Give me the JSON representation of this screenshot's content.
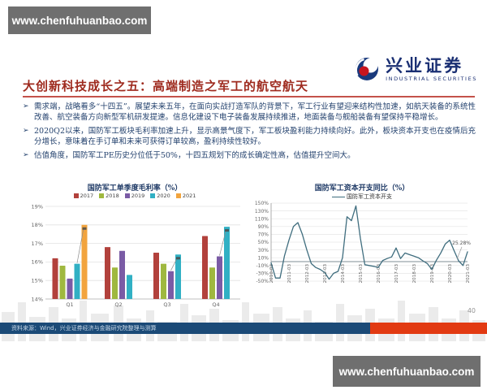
{
  "watermarks": {
    "top": "www.chenfuhuanbao.com",
    "bottom": "www.chenfuhuanbao.com"
  },
  "logo": {
    "name": "兴业证券",
    "subtitle": "INDUSTRIAL SECURITIES"
  },
  "slide": {
    "title": "大创新科技成长之五：高端制造之军工的航空航天",
    "bullet_marker": "➢",
    "bullets": [
      "需求端，战略看多“十四五”。展望未来五年，在面向实战打造军队的背景下，军工行业有望迎来结构性加速，如航天装备的系统性改善、航空装备方向新型军机研发提速。信息化建设下电子装备发展持续推进，地面装备与舰船装备有望保持平稳增长。",
      "2020Q2以来，国防军工板块毛利率加速上升，显示高景气度下，军工板块盈利能力持续向好。此外，板块资本开支也在疫情后充分增长，意味着在手订单和未来可获得订单较高，盈利持续性较好。",
      "估值角度，国防军工PE历史分位低于50%，十四五规划下的成长确定性高，估值提升空间大。"
    ],
    "source": "资料来源：Wind，兴业证券经济与金融研究院整理与测算",
    "page_number": "40"
  },
  "chart_data": [
    {
      "type": "bar",
      "title": "国防军工单季度毛利率（%）",
      "categories": [
        "Q1",
        "Q2",
        "Q3",
        "Q4"
      ],
      "series": [
        {
          "name": "2017",
          "color": "#b2413c",
          "values": [
            16.2,
            16.8,
            16.5,
            17.4
          ]
        },
        {
          "name": "2018",
          "color": "#9fb83f",
          "values": [
            15.8,
            15.7,
            15.9,
            15.7
          ]
        },
        {
          "name": "2019",
          "color": "#7a5ba5",
          "values": [
            15.1,
            16.6,
            15.5,
            16.3
          ]
        },
        {
          "name": "2020",
          "color": "#31b0c4",
          "values": [
            15.9,
            15.3,
            16.4,
            17.9
          ]
        },
        {
          "name": "2021",
          "color": "#f2a43e",
          "values": [
            18.0,
            null,
            null,
            null
          ]
        }
      ],
      "ylim": [
        14,
        19
      ],
      "ytick_step": 1,
      "ytick_suffix": "%",
      "grid": true,
      "legend_position": "top",
      "callouts": [
        {
          "category": "Q1",
          "from": "2020",
          "to": "2021"
        },
        {
          "category": "Q3",
          "from": "2019",
          "to": "2020"
        },
        {
          "category": "Q4",
          "from": "2019",
          "to": "2020"
        }
      ]
    },
    {
      "type": "line",
      "title": "国防军工资本开支同比（%）",
      "legend": [
        "国防军工资本开支"
      ],
      "color": "#3f6d7e",
      "x": [
        "2010-03",
        "2010-06",
        "2010-09",
        "2010-12",
        "2011-03",
        "2011-06",
        "2011-09",
        "2011-12",
        "2012-03",
        "2012-06",
        "2012-09",
        "2012-12",
        "2013-03",
        "2013-06",
        "2013-09",
        "2013-12",
        "2014-03",
        "2014-06",
        "2014-09",
        "2014-12",
        "2015-03",
        "2015-06",
        "2015-09",
        "2015-12",
        "2016-03",
        "2016-06",
        "2016-09",
        "2016-12",
        "2017-03",
        "2017-06",
        "2017-09",
        "2017-12",
        "2018-03",
        "2018-06",
        "2018-09",
        "2018-12",
        "2019-03",
        "2019-06",
        "2019-09",
        "2019-12",
        "2020-03",
        "2020-06",
        "2020-09",
        "2020-12",
        "2021-03"
      ],
      "values": [
        -3,
        -42,
        -42,
        15,
        55,
        90,
        100,
        70,
        30,
        -5,
        -15,
        -20,
        -28,
        -45,
        -30,
        -25,
        10,
        115,
        105,
        143,
        60,
        -8,
        -10,
        -12,
        -15,
        3,
        8,
        12,
        35,
        8,
        22,
        18,
        14,
        10,
        2,
        -5,
        -20,
        3,
        22,
        45,
        55,
        28,
        2,
        -10,
        25.28
      ],
      "xtick_every": 4,
      "ylim": [
        -50,
        150
      ],
      "ytick_step": 20,
      "ytick_suffix": "%",
      "grid": true,
      "legend_position": "top",
      "annotation": {
        "text": "25.28%"
      }
    }
  ]
}
